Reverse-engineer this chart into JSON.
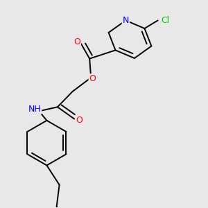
{
  "background_color": "#e8e8e8",
  "bond_color": "#000000",
  "atom_colors": {
    "N": "#0000ff",
    "O": "#ff0000",
    "Cl": "#00cc00",
    "C": "#000000",
    "H": "#808080"
  },
  "font_size": 8.5,
  "line_width": 1.4,
  "figsize": [
    3.0,
    3.0
  ],
  "dpi": 100
}
